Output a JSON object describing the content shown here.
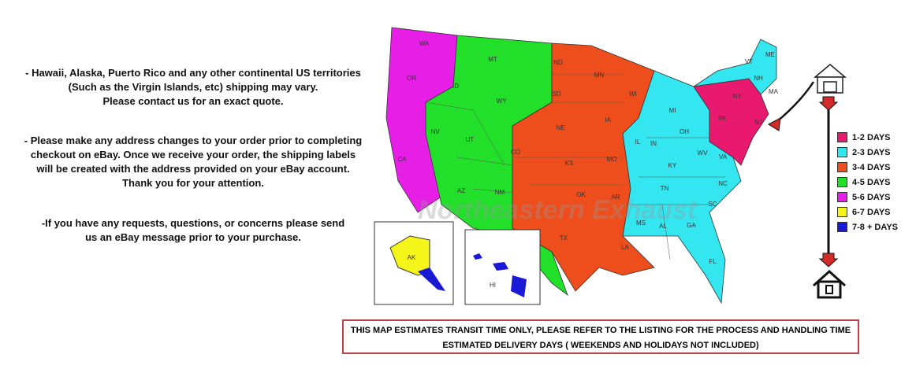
{
  "notes": [
    [
      "- Hawaii, Alaska, Puerto Rico and any other continental US territories",
      "(Such as the Virgin Islands, etc) shipping may vary.",
      "Please contact us for an exact quote."
    ],
    [
      "- Please make any address changes to your order prior to completing",
      "checkout on eBay. Once we receive your order, the shipping labels",
      "will be created with the address provided on your eBay account.",
      "Thank you for your attention."
    ],
    [
      "-If you have any requests, questions, or concerns please send",
      "us an eBay message prior to your purchase."
    ]
  ],
  "watermark": "Northeastern Exhaust",
  "legend": [
    {
      "label": "1-2 DAYS",
      "color": "#e8196e"
    },
    {
      "label": "2-3 DAYS",
      "color": "#33e6f0"
    },
    {
      "label": "3-4 DAYS",
      "color": "#ee4e1c"
    },
    {
      "label": "4-5 DAYS",
      "color": "#22e02a"
    },
    {
      "label": "5-6 DAYS",
      "color": "#e61ee6"
    },
    {
      "label": "6-7 DAYS",
      "color": "#f5f51a"
    },
    {
      "label": "7-8 + DAYS",
      "color": "#1a1ad6"
    }
  ],
  "icons": {
    "origin": "warehouse-icon",
    "destination": "house-icon",
    "arrows": "down-arrow-icon"
  },
  "states": {
    "WA": "WA",
    "OR": "OR",
    "CA": "CA",
    "ID": "ID",
    "NV": "NV",
    "MT": "MT",
    "WY": "WY",
    "UT": "UT",
    "AZ": "AZ",
    "NM": "NM",
    "CO": "CO",
    "ND": "ND",
    "SD": "SD",
    "NE": "NE",
    "KS": "KS",
    "OK": "OK",
    "TX": "TX",
    "MN": "MN",
    "IA": "IA",
    "MO": "MO",
    "AR": "AR",
    "LA": "LA",
    "WI": "WI",
    "IL": "IL",
    "MI": "MI",
    "IN": "IN",
    "OH": "OH",
    "KY": "KY",
    "TN": "TN",
    "MS": "MS",
    "AL": "AL",
    "GA": "GA",
    "FL": "FL",
    "SC": "SC",
    "NC": "NC",
    "VA": "VA",
    "WV": "WV",
    "PA": "PA",
    "NY": "NY",
    "VT": "VT",
    "NH": "NH",
    "ME": "ME",
    "MA": "MA",
    "NJ": "NJ",
    "AK": "AK",
    "HI": "HI"
  },
  "disclaimer": {
    "line1": "THIS MAP ESTIMATES TRANSIT TIME ONLY, PLEASE REFER TO THE LISTING FOR THE PROCESS AND HANDLING TIME",
    "line2": "ESTIMATED DELIVERY DAYS ( WEEKENDS AND HOLIDAYS NOT INCLUDED)"
  }
}
